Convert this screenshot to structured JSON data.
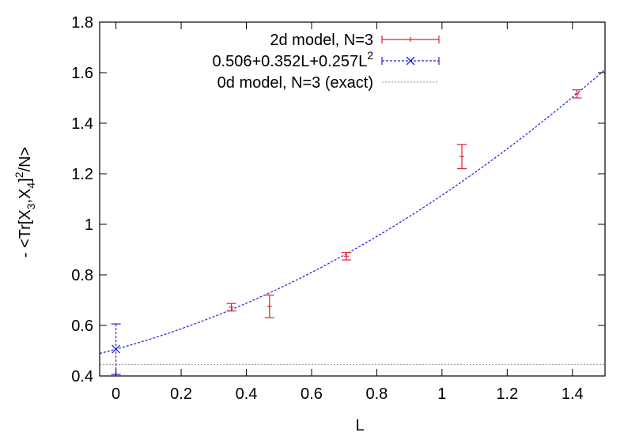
{
  "chart_data": {
    "type": "scatter",
    "xlabel": "L",
    "ylabel": {
      "prefix": "- <Tr[X",
      "sub1": "3",
      "mid": ",X",
      "sub2": "4",
      "close": "]",
      "sup": "2",
      "suffix": "/N>"
    },
    "xlim": [
      -0.05,
      1.5
    ],
    "ylim": [
      0.4,
      1.8
    ],
    "xticks": [
      0,
      0.2,
      0.4,
      0.6,
      0.8,
      1,
      1.2,
      1.4
    ],
    "xtick_labels": [
      "0",
      "0.2",
      "0.4",
      "0.6",
      "0.8",
      "1",
      "1.2",
      "1.4"
    ],
    "yticks": [
      0.4,
      0.6,
      0.8,
      1.0,
      1.2,
      1.4,
      1.6,
      1.8
    ],
    "ytick_labels": [
      "0.4",
      "0.6",
      "0.8",
      "1",
      "1.2",
      "1.4",
      "1.6",
      "1.8"
    ],
    "grid": false,
    "legend_position": "top-right",
    "colors": {
      "series": "#e0202a",
      "fit": "#1f1fdc",
      "exact": "#909090",
      "axis": "#000000"
    },
    "series": [
      {
        "name": "2d model, N=3",
        "style": "errorbar",
        "points": [
          {
            "x": 0.354,
            "y": 0.672,
            "err": 0.015
          },
          {
            "x": 0.471,
            "y": 0.675,
            "err": 0.045
          },
          {
            "x": 0.707,
            "y": 0.874,
            "err": 0.015
          },
          {
            "x": 1.061,
            "y": 1.268,
            "err": 0.048
          },
          {
            "x": 1.414,
            "y": 1.516,
            "err": 0.016
          }
        ]
      },
      {
        "name": "0.506+0.352L+0.257L",
        "name_sup": "2",
        "style": "fit",
        "coefficients": [
          0.506,
          0.352,
          0.257
        ],
        "extrapolation": {
          "x": 0,
          "y": 0.506,
          "err": 0.1
        }
      },
      {
        "name": "0d model, N=3 (exact)",
        "style": "hline",
        "y": 0.445
      }
    ]
  }
}
